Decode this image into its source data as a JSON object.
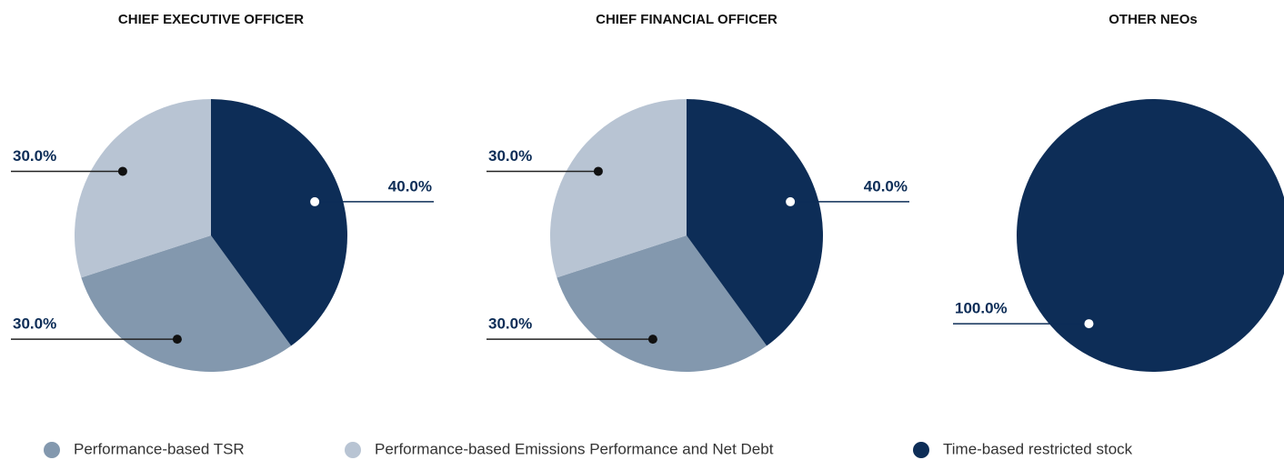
{
  "chart_data": [
    {
      "type": "pie",
      "title": "CHIEF EXECUTIVE OFFICER",
      "categories": [
        "Performance-based TSR",
        "Performance-based Emissions Performance and Net Debt",
        "Time-based restricted stock"
      ],
      "values": [
        30,
        30,
        40
      ],
      "value_labels": [
        "30.0%",
        "30.0%",
        "40.0%"
      ],
      "colors": [
        "#8398ae",
        "#b8c4d3",
        "#0d2d57"
      ]
    },
    {
      "type": "pie",
      "title": "CHIEF FINANCIAL OFFICER",
      "categories": [
        "Performance-based TSR",
        "Performance-based Emissions Performance and Net Debt",
        "Time-based restricted stock"
      ],
      "values": [
        30,
        30,
        40
      ],
      "value_labels": [
        "30.0%",
        "30.0%",
        "40.0%"
      ],
      "colors": [
        "#8398ae",
        "#b8c4d3",
        "#0d2d57"
      ]
    },
    {
      "type": "pie",
      "title": "OTHER NEOs",
      "categories": [
        "Time-based restricted stock"
      ],
      "values": [
        100
      ],
      "value_labels": [
        "100.0%"
      ],
      "colors": [
        "#0d2d57"
      ]
    }
  ]
}
